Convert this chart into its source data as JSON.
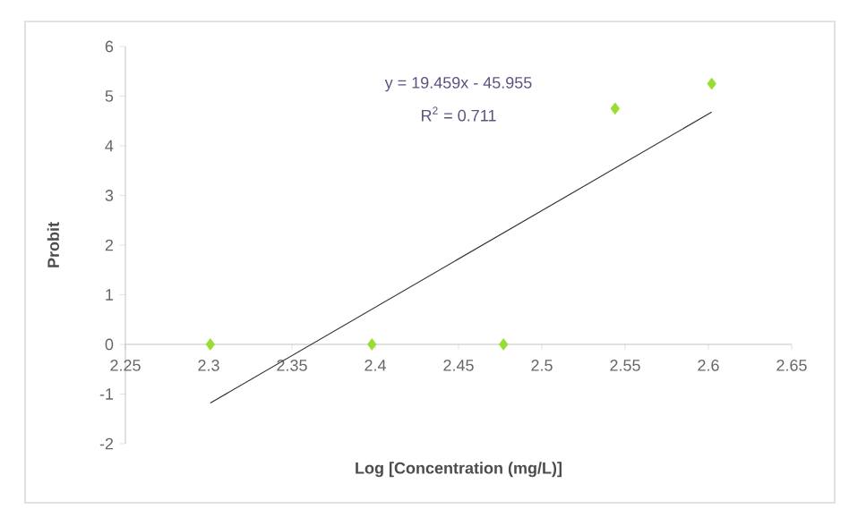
{
  "chart_data": {
    "type": "scatter",
    "xlabel": "Log [Concentration (mg/L)]",
    "ylabel": "Probit",
    "xlim": [
      2.25,
      2.65
    ],
    "ylim": [
      -2,
      6
    ],
    "xticks": [
      2.25,
      2.3,
      2.35,
      2.4,
      2.45,
      2.5,
      2.55,
      2.6,
      2.65
    ],
    "yticks": [
      -2,
      -1,
      0,
      1,
      2,
      3,
      4,
      5,
      6
    ],
    "marker": "diamond",
    "series": [
      {
        "color": "#99dd33",
        "x": [
          2.301,
          2.398,
          2.477,
          2.544,
          2.602
        ],
        "values": [
          0,
          0,
          0,
          4.75,
          5.25
        ]
      },
      {
        "type": "line",
        "color": "#333333",
        "marker": "none",
        "x": [
          2.301,
          2.602
        ],
        "values": [
          -1.18,
          4.68
        ]
      }
    ],
    "annotations": [
      "y = 19.459x - 45.955",
      "R$^{2}$ = 0.711"
    ]
  }
}
